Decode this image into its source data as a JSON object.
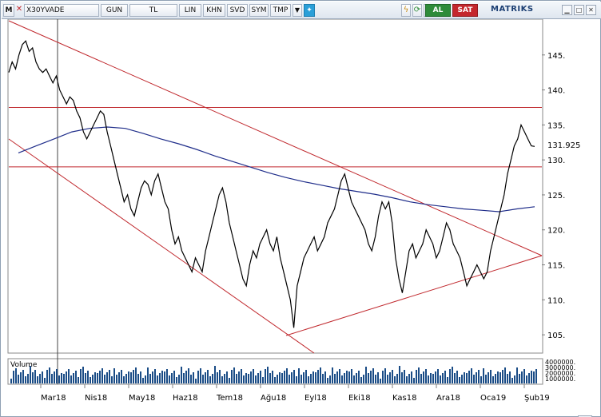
{
  "toolbar": {
    "m_label": "M",
    "symbol": "X30YVADE",
    "period": "GUN",
    "currency": "TL",
    "scale": "LIN",
    "khn": "KHN",
    "svd": "SVD",
    "sym": "SYM",
    "tmp": "TMP",
    "dropdown_icon": "triangle-down",
    "twitter_icon": "bird",
    "lightning_icon": "lightning",
    "refresh_icon": "refresh",
    "c_label": "C",
    "buy_label": "AL",
    "sell_label": "SAT",
    "brand": "MATRIKS",
    "window_icons": [
      "minimize",
      "maximize",
      "close"
    ]
  },
  "colors": {
    "price": "#000000",
    "moving_average": "#1f2d8a",
    "trend_lines": "#c0282d",
    "volume": "#1a4c86",
    "axis": "#808080",
    "buy": "#2e8b3a",
    "sell": "#c4272d"
  },
  "chart_data": {
    "type": "line",
    "series": [
      {
        "name": "X30YVADE",
        "values": [
          142.5,
          144,
          143,
          145,
          146.5,
          147,
          145.5,
          146,
          144,
          143,
          142.5,
          143,
          142,
          141,
          142,
          140,
          139,
          138,
          139,
          138.5,
          137,
          136,
          134,
          133,
          134,
          135,
          136,
          137,
          136.5,
          134,
          132,
          130,
          128,
          126,
          124,
          125,
          123,
          122,
          124,
          126,
          127,
          126.5,
          125,
          127,
          128,
          126,
          124,
          123,
          120,
          118,
          119,
          117,
          116,
          115,
          114,
          116,
          115,
          114,
          117,
          119,
          121,
          123,
          125,
          126,
          124,
          121,
          119,
          117,
          115,
          113,
          112,
          115,
          117,
          116,
          118,
          119,
          120,
          118,
          117,
          119,
          116,
          114,
          112,
          110,
          106,
          112,
          114,
          116,
          117,
          118,
          119,
          117,
          118,
          119,
          121,
          122,
          123,
          125,
          127,
          128,
          126,
          124,
          123,
          122,
          121,
          120,
          118,
          117,
          119,
          122,
          124,
          123,
          124,
          121,
          116,
          113,
          111,
          114,
          117,
          118,
          116,
          117,
          118,
          120,
          119,
          118,
          116,
          117,
          119,
          121,
          120,
          118,
          117,
          116,
          114,
          112,
          113,
          114,
          115,
          114,
          113,
          114,
          117,
          119,
          121,
          123,
          125,
          128,
          130,
          132,
          133,
          135,
          134,
          133,
          132,
          131.925
        ]
      },
      {
        "name": "MA",
        "values": [
          131,
          132,
          133,
          134,
          134.5,
          134.7,
          134.5,
          133.8,
          133,
          132.3,
          131.5,
          130.6,
          129.8,
          129,
          128.2,
          127.5,
          126.9,
          126.4,
          125.9,
          125.5,
          125.1,
          124.6,
          124,
          123.6,
          123.3,
          123,
          122.8,
          122.6,
          123,
          123.3
        ]
      }
    ],
    "x_tick_labels": [
      "Mar18",
      "Nis18",
      "May18",
      "Haz18",
      "Tem18",
      "Ağu18",
      "Eyl18",
      "Eki18",
      "Kas18",
      "Ara18",
      "Oca19",
      "Şub19"
    ],
    "y_tick_labels": [
      "145.",
      "140.",
      "135.",
      "130.",
      "125.",
      "120.",
      "115.",
      "110.",
      "105."
    ],
    "y_ticks": [
      145,
      140,
      135,
      130,
      125,
      120,
      115,
      110,
      105
    ],
    "last_value_label": "131.925",
    "ylim": [
      102.5,
      150
    ],
    "grid": false,
    "horizontal_lines": [
      137.5,
      129
    ],
    "volume": {
      "label": "Volume",
      "tick_labels": [
        "4000000.",
        "3000000.",
        "2000000.",
        "1000000."
      ]
    }
  }
}
